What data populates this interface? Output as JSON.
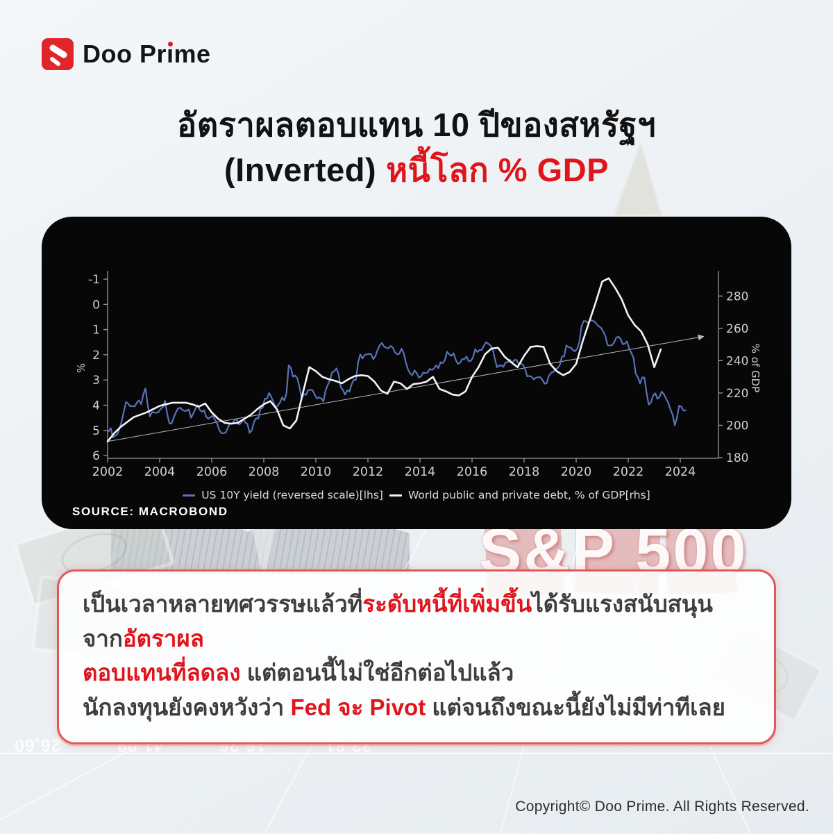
{
  "colors": {
    "accent_red": "#e01b22",
    "title_red": "#e0151c",
    "panel_black": "#070707",
    "chart_blue": "#5873b8",
    "chart_white": "#f4f4f4",
    "axis_text": "#cfcfcf"
  },
  "logo": {
    "brand_pre": "Doo Pr",
    "brand_i": "ı",
    "brand_post": "me"
  },
  "title": {
    "line1": "อัตราผลตอบแทน 10 ปีของสหรัฐฯ",
    "line2_black": "(Inverted)",
    "line2_red": "หนี้โลก % GDP"
  },
  "chart_panel": {
    "source": "SOURCE: MACROBOND"
  },
  "chart_data": {
    "type": "line",
    "x_ticks": [
      "2002",
      "2004",
      "2006",
      "2008",
      "2010",
      "2012",
      "2014",
      "2016",
      "2018",
      "2020",
      "2022",
      "2024"
    ],
    "x_range": [
      2002,
      2025.4
    ],
    "left_axis": {
      "label": "%",
      "inverted": true,
      "ticks": [
        -1,
        0,
        1,
        2,
        3,
        4,
        5,
        6
      ]
    },
    "right_axis": {
      "label": "% of GDP",
      "ticks": [
        280,
        260,
        240,
        220,
        200,
        180
      ],
      "range": [
        180,
        292
      ]
    },
    "series": [
      {
        "name": "US 10Y yield (reversed scale)[lhs]",
        "axis": "left",
        "color": "#5873b8",
        "width": 2.2,
        "start_year": 2002.04,
        "step_years": 0.08333,
        "values": [
          5.04,
          4.91,
          5.28,
          5.21,
          5.16,
          4.93,
          4.65,
          4.26,
          3.87,
          3.94,
          4.05,
          4.03,
          4.05,
          3.9,
          3.81,
          3.96,
          3.57,
          3.33,
          3.98,
          4.45,
          4.27,
          4.29,
          4.3,
          4.27,
          4.15,
          4.08,
          3.83,
          4.35,
          4.72,
          4.73,
          4.5,
          4.28,
          4.13,
          4.1,
          4.19,
          4.23,
          4.22,
          4.17,
          4.5,
          4.34,
          4.14,
          4.0,
          4.18,
          4.26,
          4.2,
          4.46,
          4.54,
          4.47,
          4.42,
          4.57,
          4.72,
          4.99,
          5.11,
          5.11,
          5.09,
          4.88,
          4.72,
          4.73,
          4.6,
          4.56,
          4.76,
          4.72,
          4.56,
          4.69,
          4.75,
          5.1,
          5.0,
          4.67,
          4.52,
          4.53,
          4.15,
          4.1,
          3.74,
          3.74,
          3.51,
          3.68,
          3.88,
          4.1,
          4.01,
          3.89,
          3.69,
          3.81,
          3.53,
          2.42,
          2.52,
          2.87,
          2.82,
          2.93,
          3.29,
          3.72,
          3.56,
          3.59,
          3.4,
          3.39,
          3.4,
          3.59,
          3.73,
          3.69,
          3.73,
          3.85,
          3.42,
          3.2,
          3.01,
          2.7,
          2.65,
          2.54,
          2.76,
          3.29,
          3.39,
          3.58,
          3.41,
          3.46,
          3.17,
          3.0,
          3.0,
          2.3,
          1.98,
          2.15,
          2.01,
          1.98,
          1.97,
          1.97,
          2.17,
          2.05,
          1.8,
          1.62,
          1.53,
          1.68,
          1.72,
          1.75,
          1.65,
          1.72,
          1.91,
          1.98,
          1.96,
          1.76,
          1.93,
          2.3,
          2.58,
          2.74,
          2.81,
          2.62,
          2.72,
          2.9,
          2.86,
          2.71,
          2.72,
          2.71,
          2.56,
          2.6,
          2.54,
          2.42,
          2.53,
          2.3,
          2.33,
          2.21,
          1.88,
          1.98,
          2.04,
          1.94,
          2.2,
          2.36,
          2.32,
          2.17,
          2.17,
          2.07,
          2.26,
          2.24,
          2.09,
          1.78,
          1.89,
          1.81,
          1.81,
          1.64,
          1.5,
          1.56,
          1.63,
          1.76,
          2.14,
          2.49,
          2.43,
          2.42,
          2.48,
          2.3,
          2.3,
          2.19,
          2.32,
          2.21,
          2.2,
          2.36,
          2.35,
          2.4,
          2.58,
          2.86,
          2.84,
          2.87,
          2.98,
          2.91,
          2.89,
          2.89,
          3.0,
          3.15,
          3.12,
          2.83,
          2.71,
          2.68,
          2.57,
          2.53,
          2.4,
          2.07,
          2.06,
          1.63,
          1.7,
          1.71,
          1.81,
          1.86,
          1.76,
          1.5,
          0.87,
          0.66,
          0.67,
          0.73,
          0.62,
          0.65,
          0.68,
          0.79,
          0.87,
          0.93,
          1.08,
          1.26,
          1.61,
          1.64,
          1.62,
          1.52,
          1.32,
          1.28,
          1.37,
          1.58,
          1.56,
          1.47,
          1.76,
          1.93,
          2.13,
          2.75,
          2.9,
          3.14,
          2.9,
          2.9,
          3.52,
          3.98,
          3.89,
          3.62,
          3.53,
          3.75,
          3.66,
          3.46,
          3.57,
          3.75,
          3.9,
          4.17,
          4.38,
          4.8,
          4.5,
          4.02,
          4.06,
          4.21,
          4.21
        ]
      },
      {
        "name": "World public and private debt, % of GDP[rhs]",
        "axis": "right",
        "color": "#f4f4f4",
        "width": 2.6,
        "start_year": 2002.0,
        "step_years": 0.25,
        "values": [
          190,
          195,
          199,
          202,
          205,
          206.5,
          208,
          210,
          212,
          213,
          214,
          214,
          214,
          213,
          211.5,
          213.5,
          208,
          204,
          201.5,
          201,
          201.5,
          204,
          206.5,
          210,
          213,
          215,
          210,
          200,
          198,
          203,
          220,
          236,
          233.5,
          230,
          228.5,
          227.5,
          226,
          228.5,
          230.5,
          231,
          230.5,
          227,
          221.5,
          219.5,
          227,
          226,
          222.5,
          225.5,
          226,
          227,
          230,
          222.5,
          221,
          219,
          218.5,
          221,
          230,
          236,
          244,
          247.5,
          248,
          242.5,
          239,
          236,
          243,
          248.5,
          249,
          248.5,
          238,
          233.5,
          231,
          233,
          238,
          252,
          264,
          276,
          289,
          291,
          285,
          278,
          268,
          262,
          258,
          250,
          236,
          247
        ]
      }
    ],
    "trend_line": {
      "x": [
        2002,
        2024.9
      ],
      "values_rhs": [
        190,
        255
      ]
    }
  },
  "callout": {
    "lines": [
      [
        {
          "text": "เป็นเวลาหลายทศวรรษแล้วที่",
          "red": false
        },
        {
          "text": "ระดับหนี้ที่เพิ่มขึ้น",
          "red": true
        },
        {
          "text": "ได้รับแรงสนับสนุนจาก",
          "red": false
        },
        {
          "text": "อัตราผล",
          "red": true
        }
      ],
      [
        {
          "text": "ตอบแทนที่ลดลง",
          "red": true
        },
        {
          "text": " แต่ตอนนี้ไม่ใช่อีกต่อไปแล้ว",
          "red": false
        }
      ],
      [
        {
          "text": "นักลงทุนยังคงหวังว่า ",
          "red": false
        },
        {
          "text": "Fed จะ Pivot",
          "red": true
        },
        {
          "text": " แต่จนถึงขณะนี้ยังไม่มีท่าทีเลย",
          "red": false
        }
      ]
    ]
  },
  "background": {
    "sp500": "S&P 500",
    "ticker_numbers": [
      "26,60",
      "41,09",
      "16,26",
      "33,81"
    ]
  },
  "footer": {
    "copyright": "Copyright© Doo Prime. All Rights Reserved."
  }
}
